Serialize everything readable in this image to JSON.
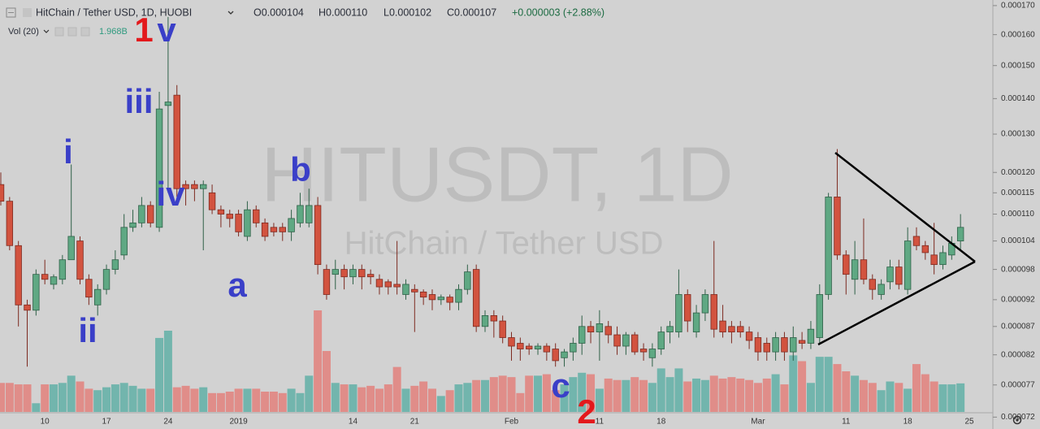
{
  "header": {
    "symbol": "HitChain / Tether USD, 1D, HUOBI",
    "open": "O0.000104",
    "high": "H0.000110",
    "low": "L0.000102",
    "close": "C0.000107",
    "change": "+0.000003 (+2.88%)",
    "volume_study": "Vol (20)",
    "volume_value": "1.968B"
  },
  "annotations": [
    {
      "text": "i"
    },
    {
      "text": "ii"
    },
    {
      "text": "iii"
    },
    {
      "text": "iv"
    },
    {
      "text": "1"
    },
    {
      "text": "v"
    },
    {
      "text": "a"
    },
    {
      "text": "b"
    },
    {
      "text": "c"
    },
    {
      "text": "2"
    }
  ],
  "chart_data": {
    "type": "candlestick",
    "watermark_title": "HITUSDT, 1D",
    "watermark_subtitle": "HitChain / Tether USD",
    "log_scale": true,
    "grid": false,
    "up_color": "#5fa883",
    "down_color": "#d2533f",
    "volume_up_color": "#72b5ad",
    "volume_down_color": "#e08d89",
    "categories": [
      null,
      null,
      null,
      null,
      null,
      "10",
      null,
      null,
      null,
      null,
      null,
      null,
      "17",
      null,
      null,
      null,
      null,
      null,
      null,
      "24",
      null,
      null,
      null,
      null,
      null,
      null,
      null,
      "2019",
      null,
      null,
      null,
      null,
      null,
      null,
      null,
      null,
      null,
      null,
      null,
      null,
      "14",
      null,
      null,
      null,
      null,
      null,
      null,
      "21",
      null,
      null,
      null,
      null,
      null,
      null,
      null,
      null,
      null,
      null,
      "Feb",
      null,
      null,
      null,
      null,
      null,
      null,
      null,
      null,
      null,
      "11",
      null,
      null,
      null,
      null,
      null,
      null,
      "18",
      null,
      null,
      null,
      null,
      null,
      null,
      null,
      null,
      null,
      null,
      "Mar",
      null,
      null,
      null,
      null,
      null,
      null,
      null,
      null,
      null,
      "11",
      null,
      null,
      null,
      null,
      null,
      null,
      "18",
      null,
      null,
      null,
      null,
      null,
      null,
      "25"
    ],
    "open": [
      0.000117,
      0.000113,
      0.000103,
      9.1e-05,
      9e-05,
      9.7e-05,
      9.5e-05,
      9.6e-05,
      0.0001,
      0.000104,
      9.6e-05,
      9.1e-05,
      9.4e-05,
      9.8e-05,
      0.000101,
      0.000107,
      0.000108,
      0.000112,
      0.000107,
      0.000138,
      0.000141,
      0.000117,
      0.000117,
      0.000116,
      0.000115,
      0.000111,
      0.00011,
      0.00011,
      0.000105,
      0.000111,
      0.000108,
      0.000107,
      0.000107,
      0.000106,
      0.000108,
      0.000108,
      0.000112,
      9.8e-05,
      9.7e-05,
      9.8e-05,
      9.65e-05,
      9.8e-05,
      9.7e-05,
      9.6e-05,
      9.55e-05,
      9.5e-05,
      9.3e-05,
      9.4e-05,
      9.35e-05,
      9.3e-05,
      9.2e-05,
      9.25e-05,
      9.15e-05,
      9.4e-05,
      9.8e-05,
      8.7e-05,
      8.9e-05,
      8.8e-05,
      8.5e-05,
      8.4e-05,
      8.35e-05,
      8.3e-05,
      8.35e-05,
      8.3e-05,
      8.15e-05,
      8.25e-05,
      8.4e-05,
      8.7e-05,
      8.6e-05,
      8.7e-05,
      8.55e-05,
      8.35e-05,
      8.55e-05,
      8.3e-05,
      8.15e-05,
      8.3e-05,
      8.6e-05,
      8.6e-05,
      9.3e-05,
      8.6e-05,
      8.95e-05,
      9.3e-05,
      8.8e-05,
      8.7e-05,
      8.7e-05,
      8.6e-05,
      8.5e-05,
      8.4e-05,
      8.25e-05,
      8.5e-05,
      8.25e-05,
      8.45e-05,
      8.4e-05,
      8.5e-05,
      9.3e-05,
      0.000114,
      0.000101,
      9.6e-05,
      0.0001,
      9.6e-05,
      9.3e-05,
      9.55e-05,
      9.85e-05,
      9.4e-05,
      0.000105,
      0.000103,
      0.000101,
      9.9e-05,
      0.000101,
      0.000104,
      null
    ],
    "high": [
      0.00012,
      0.000114,
      0.000104,
      9.2e-05,
      9.8e-05,
      0.0001,
      9.7e-05,
      0.000101,
      0.000122,
      0.000105,
      9.7e-05,
      9.5e-05,
      9.9e-05,
      0.000102,
      0.00011,
      0.000111,
      0.000114,
      0.000113,
      0.000142,
      0.000166,
      0.000144,
      0.000118,
      0.000118,
      0.000118,
      0.000117,
      0.000112,
      0.000111,
      0.000111,
      0.000113,
      0.000112,
      0.000109,
      0.000108,
      0.000108,
      0.000111,
      0.000115,
      0.000116,
      0.000114,
      9.9e-05,
      0.0001,
      9.9e-05,
      9.9e-05,
      9.9e-05,
      9.8e-05,
      9.7e-05,
      9.6e-05,
      0.000104,
      9.6e-05,
      9.5e-05,
      9.4e-05,
      9.4e-05,
      9.3e-05,
      9.3e-05,
      9.5e-05,
      9.9e-05,
      9.9e-05,
      9e-05,
      9e-05,
      8.9e-05,
      8.6e-05,
      8.5e-05,
      8.4e-05,
      8.4e-05,
      8.4e-05,
      8.4e-05,
      8.3e-05,
      8.5e-05,
      8.9e-05,
      8.8e-05,
      9e-05,
      8.8e-05,
      8.7e-05,
      8.6e-05,
      8.6e-05,
      8.4e-05,
      8.4e-05,
      8.7e-05,
      8.8e-05,
      9.8e-05,
      9.4e-05,
      9.1e-05,
      9.4e-05,
      0.000104,
      9.1e-05,
      8.8e-05,
      8.8e-05,
      8.7e-05,
      8.6e-05,
      8.5e-05,
      8.6e-05,
      8.6e-05,
      8.7e-05,
      8.6e-05,
      8.8e-05,
      9.5e-05,
      0.000115,
      0.000126,
      0.000102,
      0.000104,
      0.000109,
      9.7e-05,
      9.6e-05,
      0.0001,
      0.0001,
      0.000107,
      0.000107,
      0.000104,
      0.000108,
      0.000103,
      0.000105,
      0.00011,
      null
    ],
    "low": [
      0.000112,
      0.000102,
      8.7e-05,
      8e-05,
      8.9e-05,
      9.5e-05,
      9.4e-05,
      9.5e-05,
      0.0001,
      9.5e-05,
      9.1e-05,
      8.9e-05,
      9.3e-05,
      9.7e-05,
      0.0001,
      0.000106,
      0.000107,
      0.000107,
      0.000106,
      0.000115,
      0.000114,
      0.000112,
      0.000113,
      0.000102,
      0.00011,
      0.000107,
      0.000107,
      0.000105,
      0.000104,
      0.000107,
      0.000104,
      0.000105,
      0.000104,
      0.000104,
      0.000107,
      0.000107,
      9.7e-05,
      9.2e-05,
      9.4e-05,
      9.4e-05,
      9.5e-05,
      9.4e-05,
      9.5e-05,
      9.3e-05,
      9.3e-05,
      9.3e-05,
      9.2e-05,
      8.6e-05,
      9.1e-05,
      9e-05,
      9.1e-05,
      9e-05,
      9e-05,
      9.3e-05,
      8.6e-05,
      8.6e-05,
      8.5e-05,
      8.4e-05,
      8.1e-05,
      8.1e-05,
      8.2e-05,
      8.2e-05,
      8.1e-05,
      8e-05,
      8e-05,
      8.1e-05,
      8.2e-05,
      8.4e-05,
      8.1e-05,
      8.4e-05,
      8.2e-05,
      8.2e-05,
      8.2e-05,
      8.1e-05,
      8e-05,
      8.2e-05,
      8.4e-05,
      8.5e-05,
      8.6e-05,
      8.5e-05,
      8.8e-05,
      8.5e-05,
      8.5e-05,
      8.4e-05,
      8.5e-05,
      8.3e-05,
      8.1e-05,
      8.1e-05,
      8.1e-05,
      8.1e-05,
      8.1e-05,
      8.3e-05,
      8.3e-05,
      8.4e-05,
      9.2e-05,
      0.0001,
      9.3e-05,
      9.3e-05,
      9.5e-05,
      9.2e-05,
      9.2e-05,
      9.4e-05,
      9.4e-05,
      9.3e-05,
      0.000102,
      0.0001,
      9.7e-05,
      9.8e-05,
      0.0001,
      0.000102,
      null
    ],
    "close": [
      0.000113,
      0.000103,
      9.1e-05,
      9e-05,
      9.7e-05,
      9.6e-05,
      9.65e-05,
      0.0001,
      0.000105,
      9.6e-05,
      9.25e-05,
      9.4e-05,
      9.8e-05,
      0.0001,
      0.000107,
      0.000108,
      0.000112,
      0.000108,
      0.000137,
      0.000139,
      0.000116,
      0.000116,
      0.000116,
      0.000117,
      0.000111,
      0.00011,
      0.000109,
      0.000106,
      0.000111,
      0.000108,
      0.000105,
      0.000106,
      0.000106,
      0.000109,
      0.000112,
      0.000112,
      9.9e-05,
      9.3e-05,
      9.8e-05,
      9.65e-05,
      9.8e-05,
      9.65e-05,
      9.65e-05,
      9.45e-05,
      9.45e-05,
      9.45e-05,
      9.5e-05,
      9.35e-05,
      9.25e-05,
      9.2e-05,
      9.25e-05,
      9.15e-05,
      9.4e-05,
      9.75e-05,
      8.7e-05,
      8.9e-05,
      8.8e-05,
      8.5e-05,
      8.35e-05,
      8.3e-05,
      8.3e-05,
      8.35e-05,
      8.25e-05,
      8.1e-05,
      8.25e-05,
      8.4e-05,
      8.7e-05,
      8.6e-05,
      8.75e-05,
      8.55e-05,
      8.35e-05,
      8.55e-05,
      8.25e-05,
      8.25e-05,
      8.3e-05,
      8.6e-05,
      8.7e-05,
      9.3e-05,
      8.8e-05,
      8.95e-05,
      9.3e-05,
      8.65e-05,
      8.6e-05,
      8.6e-05,
      8.6e-05,
      8.45e-05,
      8.25e-05,
      8.25e-05,
      8.5e-05,
      8.25e-05,
      8.5e-05,
      8.4e-05,
      8.65e-05,
      9.3e-05,
      0.000114,
      0.000101,
      9.7e-05,
      0.0001,
      9.6e-05,
      9.4e-05,
      9.5e-05,
      9.85e-05,
      9.5e-05,
      0.000104,
      0.000103,
      0.0001015,
      9.9e-05,
      0.0001015,
      0.0001035,
      0.000107,
      null
    ],
    "volume": [
      2.0,
      2.0,
      1.9,
      1.9,
      0.6,
      1.9,
      1.9,
      2.0,
      2.5,
      2.1,
      1.6,
      1.5,
      1.7,
      1.9,
      2.0,
      1.8,
      1.6,
      1.6,
      5.1,
      5.6,
      1.7,
      1.8,
      1.6,
      1.7,
      1.3,
      1.3,
      1.4,
      1.6,
      1.6,
      1.6,
      1.4,
      1.4,
      1.3,
      1.6,
      1.3,
      2.5,
      7.0,
      4.2,
      2.0,
      1.9,
      1.9,
      1.7,
      1.8,
      1.6,
      1.9,
      3.1,
      1.6,
      1.8,
      2.1,
      1.6,
      1.1,
      1.5,
      1.9,
      2.0,
      2.2,
      2.2,
      2.4,
      2.5,
      2.4,
      1.3,
      2.5,
      2.5,
      2.6,
      1.5,
      1.9,
      2.4,
      2.7,
      2.6,
      1.6,
      2.3,
      2.2,
      2.2,
      2.4,
      2.2,
      2.0,
      3.0,
      2.4,
      3.0,
      2.1,
      2.3,
      2.2,
      2.5,
      2.3,
      2.4,
      2.3,
      2.2,
      2.0,
      2.3,
      2.6,
      1.9,
      3.9,
      3.5,
      2.0,
      3.8,
      3.8,
      3.3,
      2.8,
      2.5,
      2.2,
      2.0,
      1.5,
      2.1,
      2.0,
      1.6,
      3.3,
      2.6,
      2.1,
      1.9,
      1.9,
      1.968,
      null
    ],
    "ylim": [
      7.18e-05,
      0.000172
    ],
    "yticks": [
      {
        "value": 0.00017,
        "label": "0.000170"
      },
      {
        "value": 0.00016,
        "label": "0.000160"
      },
      {
        "value": 0.00015,
        "label": "0.000150"
      },
      {
        "value": 0.00014,
        "label": "0.000140"
      },
      {
        "value": 0.00013,
        "label": "0.000130"
      },
      {
        "value": 0.00012,
        "label": "0.000120"
      },
      {
        "value": 0.000115,
        "label": "0.000115"
      },
      {
        "value": 0.00011,
        "label": "0.000110"
      },
      {
        "value": 0.000104,
        "label": "0.000104"
      },
      {
        "value": 9.8e-05,
        "label": "0.000098"
      },
      {
        "value": 9.2e-05,
        "label": "0.000092"
      },
      {
        "value": 8.7e-05,
        "label": "0.000087"
      },
      {
        "value": 8.2e-05,
        "label": "0.000082"
      },
      {
        "value": 7.7e-05,
        "label": "0.000077"
      },
      {
        "value": 7.2e-05,
        "label": "0.000072"
      }
    ]
  }
}
